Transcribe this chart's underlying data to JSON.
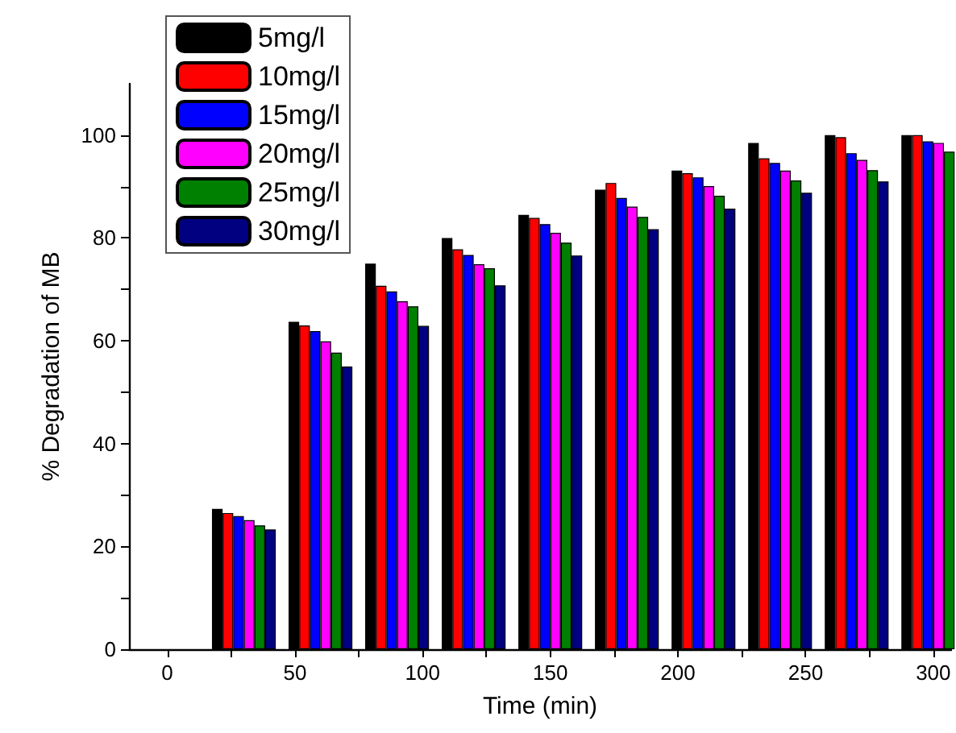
{
  "chart_data": {
    "type": "bar",
    "xlabel": "Time (min)",
    "ylabel": "% Degradation of MB",
    "x": [
      30,
      60,
      90,
      120,
      150,
      180,
      210,
      240,
      270,
      300
    ],
    "series": [
      {
        "name": "5mg/l",
        "color": "#000000",
        "values": [
          27.3,
          63.7,
          75,
          80,
          84.5,
          89.4,
          93.1,
          98.5,
          100,
          100
        ]
      },
      {
        "name": "10mg/l",
        "color": "#ff0000",
        "values": [
          26.5,
          63,
          70.7,
          77.8,
          83.9,
          90.7,
          92.6,
          95.5,
          99.6,
          100
        ]
      },
      {
        "name": "15mg/l",
        "color": "#0000ff",
        "values": [
          25.9,
          61.9,
          69.6,
          76.7,
          82.7,
          87.8,
          91.8,
          94.6,
          96.5,
          98.8
        ]
      },
      {
        "name": "20mg/l",
        "color": "#ff00ff",
        "values": [
          25.1,
          59.9,
          67.7,
          74.9,
          81,
          86.1,
          90.1,
          93.1,
          95.2,
          98.5
        ]
      },
      {
        "name": "25mg/l",
        "color": "#008000",
        "values": [
          24.1,
          57.7,
          66.7,
          74.1,
          79.1,
          84.1,
          88.2,
          91.2,
          93.2,
          96.8
        ]
      },
      {
        "name": "30mg/l",
        "color": "#000080",
        "values": [
          23.3,
          55,
          62.9,
          70.8,
          76.6,
          81.7,
          85.7,
          88.8,
          91,
          null
        ]
      }
    ],
    "xlim": [
      -15,
      307
    ],
    "xticks": [
      0,
      {
        "value": 25,
        "label": null
      },
      50,
      {
        "value": 75,
        "label": null
      },
      100,
      {
        "value": 125,
        "label": null
      },
      150,
      {
        "value": 175,
        "label": null
      },
      200,
      {
        "value": 225,
        "label": null
      },
      250,
      {
        "value": 275,
        "label": null
      },
      300
    ],
    "ylim": [
      0,
      110
    ],
    "yticks": [
      0,
      {
        "value": 10,
        "label": null
      },
      20,
      {
        "value": 30,
        "label": null
      },
      40,
      {
        "value": 50,
        "label": null
      },
      60,
      {
        "value": 70,
        "label": null
      },
      80,
      {
        "value": 90,
        "label": null
      },
      100
    ],
    "grid": false,
    "legend": "top left"
  }
}
